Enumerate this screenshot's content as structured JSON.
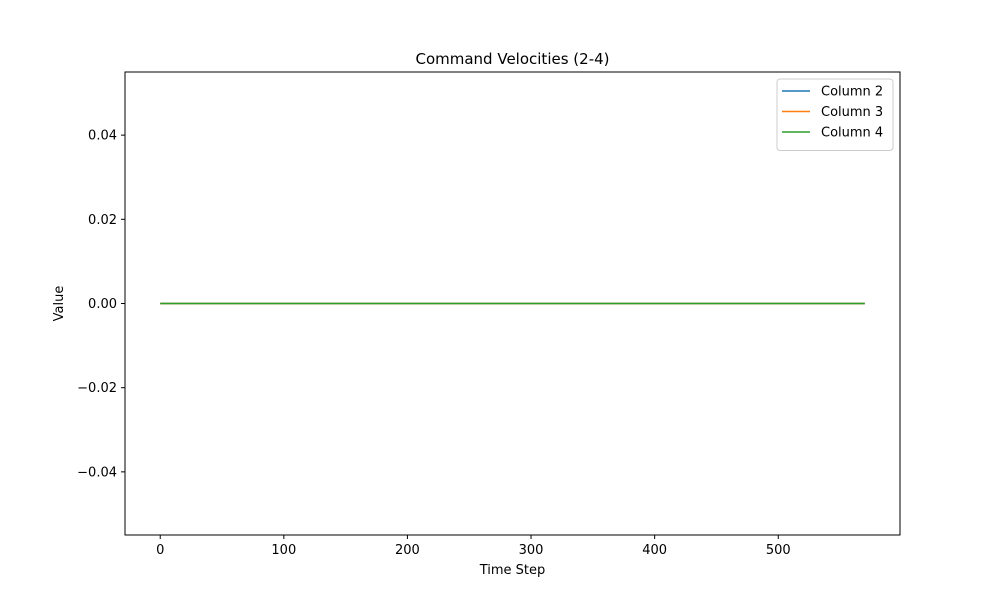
{
  "chart_data": {
    "type": "line",
    "title": "Command Velocities (2-4)",
    "xlabel": "Time Step",
    "ylabel": "Value",
    "xlim": [
      -28.5,
      598.5
    ],
    "ylim": [
      -0.055,
      0.055
    ],
    "xticks": [
      0,
      100,
      200,
      300,
      400,
      500
    ],
    "yticks": [
      -0.04,
      -0.02,
      0.0,
      0.02,
      0.04
    ],
    "ytick_labels": [
      "−0.04",
      "−0.02",
      "0.00",
      "0.02",
      "0.04"
    ],
    "grid": false,
    "legend_position": "upper right",
    "series": [
      {
        "name": "Column 2",
        "color": "#1f77b4",
        "x": [
          0,
          570
        ],
        "y": [
          0,
          0
        ]
      },
      {
        "name": "Column 3",
        "color": "#ff7f0e",
        "x": [
          0,
          570
        ],
        "y": [
          0,
          0
        ]
      },
      {
        "name": "Column 4",
        "color": "#2ca02c",
        "x": [
          0,
          570
        ],
        "y": [
          0,
          0
        ]
      }
    ]
  }
}
